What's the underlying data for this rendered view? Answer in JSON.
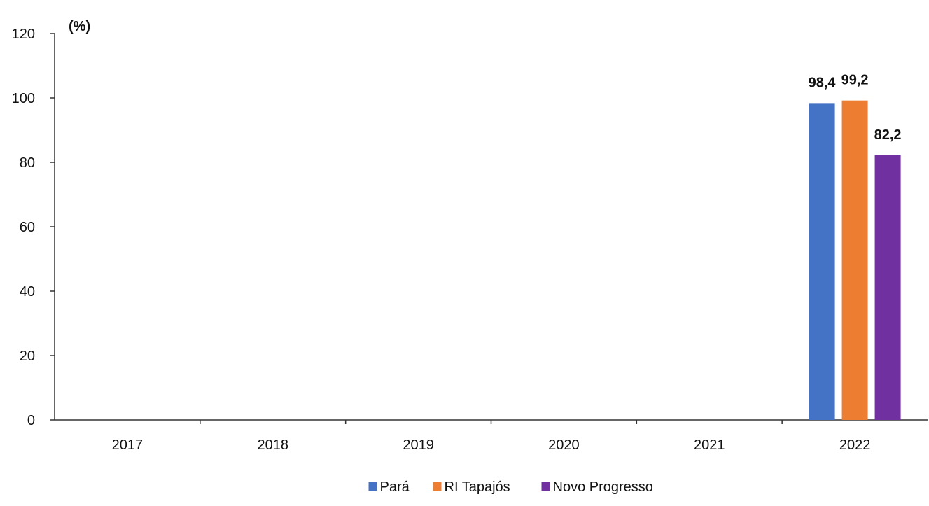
{
  "chart_data": {
    "type": "bar",
    "unit_label": "(%)",
    "categories": [
      "2017",
      "2018",
      "2019",
      "2020",
      "2021",
      "2022"
    ],
    "series": [
      {
        "name": "Pará",
        "color": "#4472C4",
        "values": [
          null,
          null,
          null,
          null,
          null,
          98.4
        ],
        "labels": [
          "",
          "",
          "",
          "",
          "",
          "98,4"
        ]
      },
      {
        "name": "RI Tapajós",
        "color": "#ED7D31",
        "values": [
          null,
          null,
          null,
          null,
          null,
          99.2
        ],
        "labels": [
          "",
          "",
          "",
          "",
          "",
          "99,2"
        ]
      },
      {
        "name": "Novo Progresso",
        "color": "#7030A0",
        "values": [
          null,
          null,
          null,
          null,
          null,
          82.2
        ],
        "labels": [
          "",
          "",
          "",
          "",
          "",
          "82,2"
        ]
      }
    ],
    "y_ticks": [
      "0",
      "20",
      "40",
      "60",
      "80",
      "100",
      "120"
    ],
    "ylim": [
      0,
      120
    ],
    "grid": false,
    "legend_position": "bottom"
  }
}
